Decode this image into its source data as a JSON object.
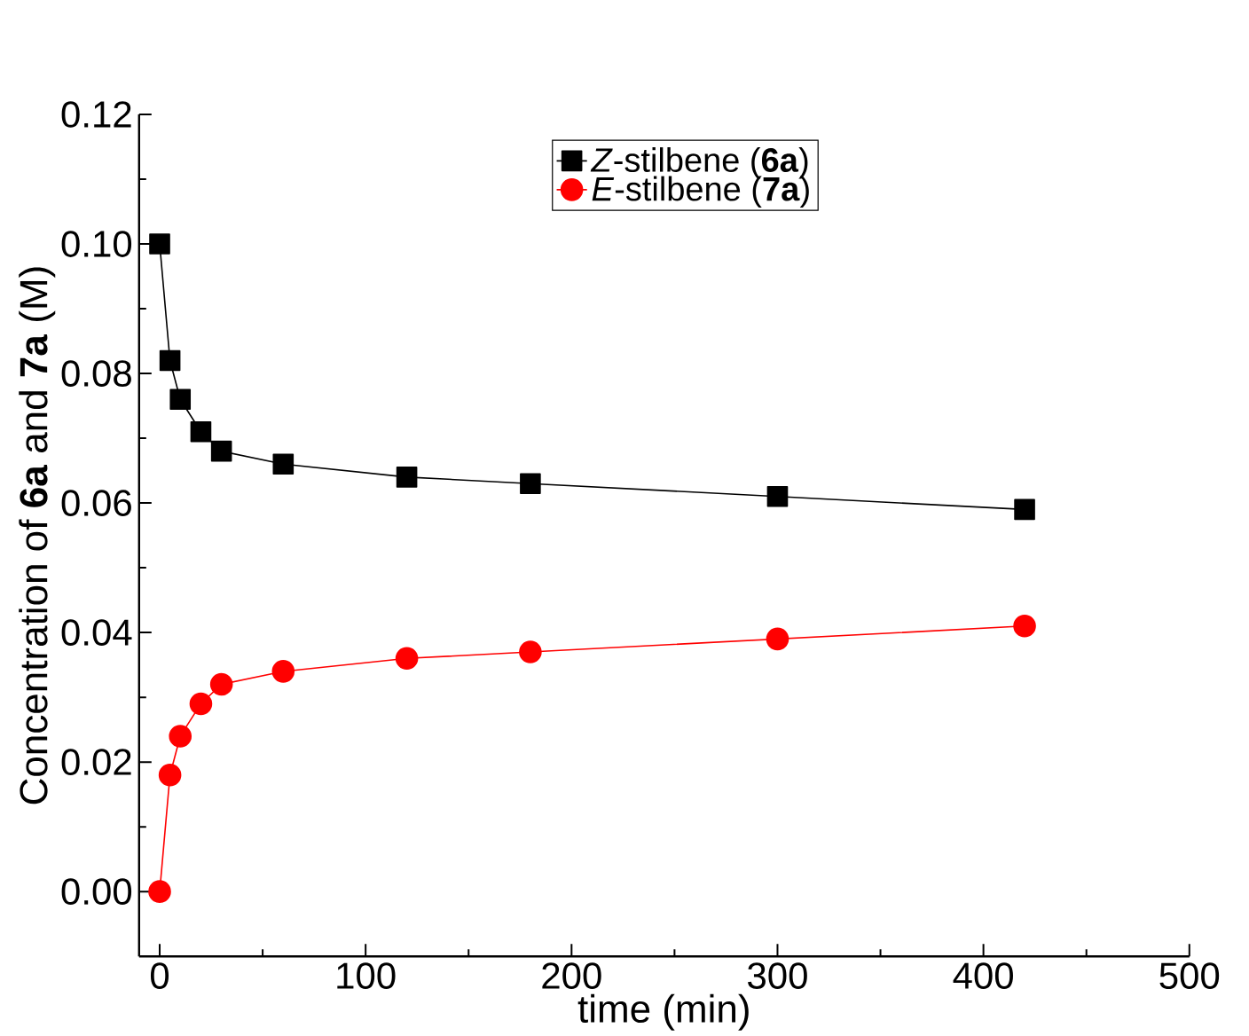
{
  "chart_data": {
    "type": "line",
    "xlabel": "time (min)",
    "ylabel": "Concentration of **6a** and **7a** (M)",
    "x": [
      0,
      5,
      10,
      20,
      30,
      60,
      120,
      180,
      300,
      420
    ],
    "series": [
      {
        "name": "*Z*-stilbene (**6a**)",
        "color": "#000000",
        "marker": "square",
        "values": [
          0.1,
          0.082,
          0.076,
          0.071,
          0.068,
          0.066,
          0.064,
          0.063,
          0.061,
          0.059
        ]
      },
      {
        "name": "*E*-stilbene (**7a**)",
        "color": "#ff0000",
        "marker": "circle",
        "values": [
          0.0,
          0.018,
          0.024,
          0.029,
          0.032,
          0.034,
          0.036,
          0.037,
          0.039,
          0.041
        ]
      }
    ],
    "xlim": [
      -10,
      500
    ],
    "xticks": [
      0,
      100,
      200,
      300,
      400,
      500
    ],
    "ylim": [
      -0.01,
      0.12
    ],
    "yticks": [
      {
        "value": 0,
        "label": "0.00"
      },
      {
        "value": 0.02,
        "label": "0.02"
      },
      {
        "value": 0.04,
        "label": "0.04"
      },
      {
        "value": 0.06,
        "label": "0.06"
      },
      {
        "value": 0.08,
        "label": "0.08"
      },
      {
        "value": 0.1,
        "label": "0.10"
      },
      {
        "value": 0.12,
        "label": "0.12"
      }
    ],
    "legend": "top",
    "grid": false,
    "line_style": "solid"
  }
}
